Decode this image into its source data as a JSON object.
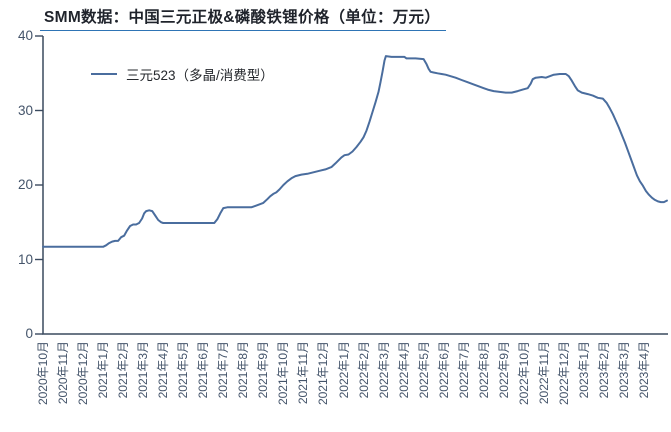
{
  "title": "SMM数据：中国三元正极&磷酸铁锂价格（单位：万元）",
  "legend": {
    "label": "三元523（多晶/消费型）"
  },
  "colors": {
    "line": "#4a6d9e",
    "axis": "#3a4a5f",
    "tick_label": "#44546a",
    "title_text": "#1f232b",
    "title_underline": "#2e74b5"
  },
  "chart_data": {
    "type": "line",
    "title": "SMM数据：中国三元正极&磷酸铁锂价格（单位：万元）",
    "unit": "万元",
    "xlabel": "",
    "ylabel": "",
    "ylim": [
      0,
      40
    ],
    "y_ticks": [
      0,
      10,
      20,
      30,
      40
    ],
    "grid": false,
    "legend_position": "top-left",
    "x_labels": [
      "2020年10月",
      "2020年11月",
      "2020年12月",
      "2021年1月",
      "2021年2月",
      "2021年3月",
      "2021年4月",
      "2021年5月",
      "2021年6月",
      "2021年7月",
      "2021年8月",
      "2021年9月",
      "2021年10月",
      "2021年11月",
      "2021年12月",
      "2022年1月",
      "2022年2月",
      "2022年3月",
      "2022年4月",
      "2022年5月",
      "2022年6月",
      "2022年7月",
      "2022年8月",
      "2022年9月",
      "2022年10月",
      "2022年11月",
      "2022年12月",
      "2023年1月",
      "2023年2月",
      "2023年3月",
      "2023年4月"
    ],
    "x_unit": "months_since_2020-10 (0 = 2020年10月)",
    "series": [
      {
        "name": "三元523（多晶/消费型）",
        "points": [
          [
            0,
            11.7
          ],
          [
            0.6,
            11.7
          ],
          [
            1.2,
            11.7
          ],
          [
            1.8,
            11.7
          ],
          [
            2.4,
            11.7
          ],
          [
            3.0,
            11.7
          ],
          [
            3.15,
            11.9
          ],
          [
            3.3,
            12.2
          ],
          [
            3.45,
            12.4
          ],
          [
            3.6,
            12.5
          ],
          [
            3.75,
            12.5
          ],
          [
            3.9,
            13.0
          ],
          [
            4.05,
            13.2
          ],
          [
            4.2,
            13.9
          ],
          [
            4.35,
            14.5
          ],
          [
            4.5,
            14.7
          ],
          [
            4.65,
            14.7
          ],
          [
            4.8,
            14.9
          ],
          [
            4.95,
            15.5
          ],
          [
            5.05,
            16.2
          ],
          [
            5.15,
            16.5
          ],
          [
            5.3,
            16.6
          ],
          [
            5.45,
            16.5
          ],
          [
            5.6,
            15.9
          ],
          [
            5.75,
            15.3
          ],
          [
            5.9,
            15.0
          ],
          [
            6.0,
            14.9
          ],
          [
            6.6,
            14.9
          ],
          [
            7.2,
            14.9
          ],
          [
            7.8,
            14.9
          ],
          [
            8.55,
            14.9
          ],
          [
            8.7,
            15.4
          ],
          [
            8.85,
            16.2
          ],
          [
            9.0,
            16.9
          ],
          [
            9.2,
            17.0
          ],
          [
            9.8,
            17.0
          ],
          [
            10.4,
            17.0
          ],
          [
            10.6,
            17.2
          ],
          [
            10.8,
            17.4
          ],
          [
            11.0,
            17.6
          ],
          [
            11.2,
            18.1
          ],
          [
            11.35,
            18.5
          ],
          [
            11.5,
            18.8
          ],
          [
            11.65,
            19.0
          ],
          [
            11.8,
            19.4
          ],
          [
            12.0,
            20.0
          ],
          [
            12.2,
            20.5
          ],
          [
            12.4,
            20.9
          ],
          [
            12.6,
            21.2
          ],
          [
            12.9,
            21.4
          ],
          [
            13.2,
            21.5
          ],
          [
            13.5,
            21.7
          ],
          [
            13.8,
            21.9
          ],
          [
            14.1,
            22.1
          ],
          [
            14.4,
            22.4
          ],
          [
            14.6,
            22.9
          ],
          [
            14.75,
            23.3
          ],
          [
            14.9,
            23.7
          ],
          [
            15.05,
            24.0
          ],
          [
            15.25,
            24.1
          ],
          [
            15.45,
            24.5
          ],
          [
            15.65,
            25.1
          ],
          [
            15.85,
            25.8
          ],
          [
            16.0,
            26.4
          ],
          [
            16.15,
            27.3
          ],
          [
            16.3,
            28.5
          ],
          [
            16.45,
            29.8
          ],
          [
            16.6,
            31.1
          ],
          [
            16.75,
            32.5
          ],
          [
            16.85,
            33.8
          ],
          [
            16.95,
            35.2
          ],
          [
            17.05,
            36.7
          ],
          [
            17.12,
            37.3
          ],
          [
            17.4,
            37.2
          ],
          [
            17.8,
            37.2
          ],
          [
            18.05,
            37.2
          ],
          [
            18.15,
            37.0
          ],
          [
            18.6,
            37.0
          ],
          [
            19.0,
            36.9
          ],
          [
            19.15,
            36.2
          ],
          [
            19.25,
            35.6
          ],
          [
            19.35,
            35.2
          ],
          [
            19.5,
            35.1
          ],
          [
            19.7,
            35.0
          ],
          [
            19.9,
            34.9
          ],
          [
            20.1,
            34.8
          ],
          [
            20.35,
            34.6
          ],
          [
            20.6,
            34.4
          ],
          [
            20.9,
            34.1
          ],
          [
            21.2,
            33.8
          ],
          [
            21.5,
            33.5
          ],
          [
            21.8,
            33.2
          ],
          [
            22.0,
            33.0
          ],
          [
            22.2,
            32.8
          ],
          [
            22.5,
            32.6
          ],
          [
            22.8,
            32.5
          ],
          [
            23.1,
            32.4
          ],
          [
            23.4,
            32.4
          ],
          [
            23.7,
            32.6
          ],
          [
            23.95,
            32.8
          ],
          [
            24.2,
            33.0
          ],
          [
            24.35,
            33.6
          ],
          [
            24.45,
            34.2
          ],
          [
            24.6,
            34.4
          ],
          [
            24.9,
            34.5
          ],
          [
            25.1,
            34.4
          ],
          [
            25.3,
            34.6
          ],
          [
            25.5,
            34.8
          ],
          [
            25.8,
            34.9
          ],
          [
            26.1,
            34.9
          ],
          [
            26.25,
            34.6
          ],
          [
            26.4,
            34.0
          ],
          [
            26.55,
            33.3
          ],
          [
            26.7,
            32.7
          ],
          [
            26.9,
            32.4
          ],
          [
            27.2,
            32.2
          ],
          [
            27.45,
            32.0
          ],
          [
            27.7,
            31.7
          ],
          [
            27.95,
            31.6
          ],
          [
            28.15,
            31.0
          ],
          [
            28.3,
            30.3
          ],
          [
            28.45,
            29.5
          ],
          [
            28.6,
            28.6
          ],
          [
            28.75,
            27.7
          ],
          [
            28.9,
            26.7
          ],
          [
            29.05,
            25.7
          ],
          [
            29.2,
            24.6
          ],
          [
            29.35,
            23.5
          ],
          [
            29.5,
            22.4
          ],
          [
            29.65,
            21.3
          ],
          [
            29.8,
            20.5
          ],
          [
            29.95,
            19.9
          ],
          [
            30.1,
            19.2
          ],
          [
            30.25,
            18.7
          ],
          [
            30.4,
            18.3
          ],
          [
            30.55,
            18.0
          ],
          [
            30.7,
            17.8
          ],
          [
            30.85,
            17.7
          ],
          [
            31.0,
            17.7
          ],
          [
            31.15,
            17.9
          ]
        ]
      }
    ]
  }
}
